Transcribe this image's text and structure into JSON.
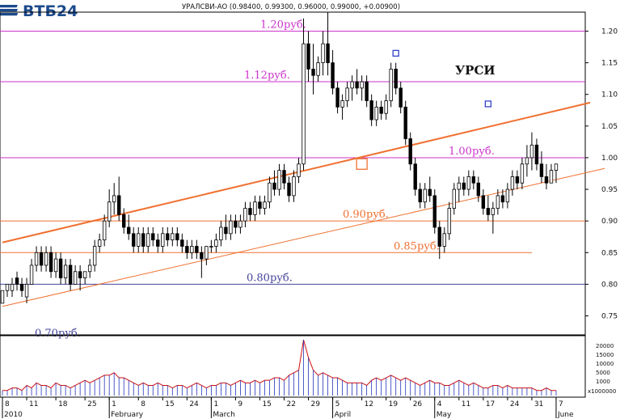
{
  "brand": {
    "name": "ВТБ24"
  },
  "header": {
    "quote": "УРАЛСВИ-АО (0.98400, 0.99300, 0.96000, 0.99000, +0.00900)"
  },
  "chart_data": {
    "type": "candlestick",
    "ticker_label": "УРСИ",
    "ylim": [
      0.72,
      1.23
    ],
    "y_ticks": [
      "1.20",
      "1.15",
      "1.10",
      "1.05",
      "1.00",
      "0.95",
      "0.90",
      "0.85",
      "0.80",
      "0.75"
    ],
    "x_day_labels": [
      "8",
      "11",
      "18",
      "25",
      "1",
      "8",
      "15",
      "24",
      "1",
      "9",
      "15",
      "22",
      "29",
      "5",
      "12",
      "19",
      "26",
      "4",
      "11",
      "17",
      "24",
      "31",
      "7"
    ],
    "x_month_labels": [
      "2010",
      "February",
      "March",
      "April",
      "May",
      "June"
    ],
    "levels": [
      {
        "value": 1.2,
        "label": "1.20руб.",
        "color": "#cc33cc"
      },
      {
        "value": 1.12,
        "label": "1.12руб.",
        "color": "#cc33cc"
      },
      {
        "value": 1.0,
        "label": "1.00руб.",
        "color": "#cc33cc"
      },
      {
        "value": 0.9,
        "label": "0.90руб.",
        "color": "#f07030"
      },
      {
        "value": 0.85,
        "label": "0.85руб.",
        "color": "#f07030"
      },
      {
        "value": 0.8,
        "label": "0.80руб.",
        "color": "#444499"
      },
      {
        "value": 0.7,
        "label": "0.70руб.",
        "color": "#444499"
      }
    ],
    "trendlines": [
      {
        "name": "upper",
        "start": {
          "day": 0,
          "value": 0.866
        },
        "end": {
          "day": 121,
          "value": 1.087
        }
      },
      {
        "name": "lower",
        "start": {
          "day": 0,
          "value": 0.765
        },
        "end": {
          "day": 124,
          "value": 0.983
        }
      }
    ],
    "markers": [
      {
        "day": 74,
        "value": 0.99,
        "color": "#f07030",
        "size": "large"
      },
      {
        "day": 81,
        "value": 1.165,
        "color": "#3344cc",
        "size": "small"
      },
      {
        "day": 100,
        "value": 1.085,
        "color": "#3344cc",
        "size": "small"
      },
      {
        "day": 130,
        "value": 1.013,
        "color": "#3344cc",
        "size": "small"
      }
    ],
    "candles": [
      {
        "day": 0,
        "o": 0.77,
        "h": 0.79,
        "l": 0.77,
        "c": 0.79
      },
      {
        "day": 1,
        "o": 0.79,
        "h": 0.8,
        "l": 0.78,
        "c": 0.8
      },
      {
        "day": 2,
        "o": 0.79,
        "h": 0.81,
        "l": 0.78,
        "c": 0.8
      },
      {
        "day": 3,
        "o": 0.81,
        "h": 0.82,
        "l": 0.79,
        "c": 0.8
      },
      {
        "day": 4,
        "o": 0.8,
        "h": 0.81,
        "l": 0.78,
        "c": 0.79
      },
      {
        "day": 5,
        "o": 0.78,
        "h": 0.81,
        "l": 0.77,
        "c": 0.8
      },
      {
        "day": 6,
        "o": 0.8,
        "h": 0.84,
        "l": 0.8,
        "c": 0.83
      },
      {
        "day": 7,
        "o": 0.83,
        "h": 0.86,
        "l": 0.82,
        "c": 0.85
      },
      {
        "day": 8,
        "o": 0.85,
        "h": 0.86,
        "l": 0.82,
        "c": 0.83
      },
      {
        "day": 9,
        "o": 0.83,
        "h": 0.86,
        "l": 0.82,
        "c": 0.85
      },
      {
        "day": 10,
        "o": 0.85,
        "h": 0.86,
        "l": 0.81,
        "c": 0.82
      },
      {
        "day": 11,
        "o": 0.82,
        "h": 0.85,
        "l": 0.81,
        "c": 0.84
      },
      {
        "day": 12,
        "o": 0.84,
        "h": 0.85,
        "l": 0.8,
        "c": 0.81
      },
      {
        "day": 13,
        "o": 0.81,
        "h": 0.84,
        "l": 0.8,
        "c": 0.83
      },
      {
        "day": 14,
        "o": 0.83,
        "h": 0.84,
        "l": 0.79,
        "c": 0.8
      },
      {
        "day": 15,
        "o": 0.8,
        "h": 0.83,
        "l": 0.8,
        "c": 0.82
      },
      {
        "day": 16,
        "o": 0.82,
        "h": 0.83,
        "l": 0.79,
        "c": 0.81
      },
      {
        "day": 17,
        "o": 0.81,
        "h": 0.82,
        "l": 0.8,
        "c": 0.82
      },
      {
        "day": 18,
        "o": 0.82,
        "h": 0.84,
        "l": 0.81,
        "c": 0.83
      },
      {
        "day": 19,
        "o": 0.83,
        "h": 0.87,
        "l": 0.82,
        "c": 0.86
      },
      {
        "day": 20,
        "o": 0.86,
        "h": 0.88,
        "l": 0.85,
        "c": 0.87
      },
      {
        "day": 21,
        "o": 0.87,
        "h": 0.91,
        "l": 0.86,
        "c": 0.9
      },
      {
        "day": 22,
        "o": 0.9,
        "h": 0.95,
        "l": 0.89,
        "c": 0.93
      },
      {
        "day": 23,
        "o": 0.93,
        "h": 0.96,
        "l": 0.91,
        "c": 0.94
      },
      {
        "day": 24,
        "o": 0.94,
        "h": 0.97,
        "l": 0.9,
        "c": 0.91
      },
      {
        "day": 25,
        "o": 0.91,
        "h": 0.92,
        "l": 0.88,
        "c": 0.89
      },
      {
        "day": 26,
        "o": 0.89,
        "h": 0.91,
        "l": 0.87,
        "c": 0.88
      },
      {
        "day": 27,
        "o": 0.88,
        "h": 0.89,
        "l": 0.85,
        "c": 0.86
      },
      {
        "day": 28,
        "o": 0.86,
        "h": 0.89,
        "l": 0.85,
        "c": 0.88
      },
      {
        "day": 29,
        "o": 0.88,
        "h": 0.89,
        "l": 0.85,
        "c": 0.86
      },
      {
        "day": 30,
        "o": 0.86,
        "h": 0.89,
        "l": 0.85,
        "c": 0.88
      },
      {
        "day": 31,
        "o": 0.88,
        "h": 0.89,
        "l": 0.86,
        "c": 0.87
      },
      {
        "day": 32,
        "o": 0.87,
        "h": 0.88,
        "l": 0.85,
        "c": 0.86
      },
      {
        "day": 33,
        "o": 0.86,
        "h": 0.89,
        "l": 0.85,
        "c": 0.88
      },
      {
        "day": 34,
        "o": 0.88,
        "h": 0.89,
        "l": 0.86,
        "c": 0.87
      },
      {
        "day": 35,
        "o": 0.87,
        "h": 0.89,
        "l": 0.86,
        "c": 0.88
      },
      {
        "day": 36,
        "o": 0.88,
        "h": 0.89,
        "l": 0.86,
        "c": 0.87
      },
      {
        "day": 37,
        "o": 0.87,
        "h": 0.88,
        "l": 0.85,
        "c": 0.86
      },
      {
        "day": 38,
        "o": 0.86,
        "h": 0.87,
        "l": 0.84,
        "c": 0.85
      },
      {
        "day": 39,
        "o": 0.85,
        "h": 0.87,
        "l": 0.84,
        "c": 0.86
      },
      {
        "day": 40,
        "o": 0.86,
        "h": 0.87,
        "l": 0.84,
        "c": 0.85
      },
      {
        "day": 41,
        "o": 0.85,
        "h": 0.86,
        "l": 0.81,
        "c": 0.84
      },
      {
        "day": 42,
        "o": 0.84,
        "h": 0.86,
        "l": 0.83,
        "c": 0.86
      },
      {
        "day": 43,
        "o": 0.86,
        "h": 0.87,
        "l": 0.85,
        "c": 0.86
      },
      {
        "day": 44,
        "o": 0.86,
        "h": 0.88,
        "l": 0.85,
        "c": 0.87
      },
      {
        "day": 45,
        "o": 0.87,
        "h": 0.9,
        "l": 0.86,
        "c": 0.89
      },
      {
        "day": 46,
        "o": 0.89,
        "h": 0.91,
        "l": 0.87,
        "c": 0.88
      },
      {
        "day": 47,
        "o": 0.88,
        "h": 0.91,
        "l": 0.87,
        "c": 0.9
      },
      {
        "day": 48,
        "o": 0.9,
        "h": 0.91,
        "l": 0.88,
        "c": 0.89
      },
      {
        "day": 49,
        "o": 0.89,
        "h": 0.91,
        "l": 0.88,
        "c": 0.9
      },
      {
        "day": 50,
        "o": 0.9,
        "h": 0.93,
        "l": 0.89,
        "c": 0.92
      },
      {
        "day": 51,
        "o": 0.92,
        "h": 0.93,
        "l": 0.9,
        "c": 0.91
      },
      {
        "day": 52,
        "o": 0.91,
        "h": 0.94,
        "l": 0.9,
        "c": 0.93
      },
      {
        "day": 53,
        "o": 0.93,
        "h": 0.94,
        "l": 0.91,
        "c": 0.92
      },
      {
        "day": 54,
        "o": 0.92,
        "h": 0.94,
        "l": 0.91,
        "c": 0.93
      },
      {
        "day": 55,
        "o": 0.93,
        "h": 0.97,
        "l": 0.92,
        "c": 0.96
      },
      {
        "day": 56,
        "o": 0.96,
        "h": 0.98,
        "l": 0.94,
        "c": 0.95
      },
      {
        "day": 57,
        "o": 0.95,
        "h": 0.99,
        "l": 0.94,
        "c": 0.98
      },
      {
        "day": 58,
        "o": 0.98,
        "h": 0.99,
        "l": 0.95,
        "c": 0.96
      },
      {
        "day": 59,
        "o": 0.96,
        "h": 0.97,
        "l": 0.93,
        "c": 0.94
      },
      {
        "day": 60,
        "o": 0.94,
        "h": 0.98,
        "l": 0.93,
        "c": 0.97
      },
      {
        "day": 61,
        "o": 0.97,
        "h": 1.0,
        "l": 0.96,
        "c": 0.99
      },
      {
        "day": 62,
        "o": 0.99,
        "h": 1.22,
        "l": 0.98,
        "c": 1.18
      },
      {
        "day": 63,
        "o": 1.18,
        "h": 1.2,
        "l": 1.12,
        "c": 1.14
      },
      {
        "day": 64,
        "o": 1.14,
        "h": 1.18,
        "l": 1.1,
        "c": 1.13
      },
      {
        "day": 65,
        "o": 1.13,
        "h": 1.16,
        "l": 1.12,
        "c": 1.15
      },
      {
        "day": 66,
        "o": 1.15,
        "h": 1.2,
        "l": 1.13,
        "c": 1.18
      },
      {
        "day": 67,
        "o": 1.18,
        "h": 1.23,
        "l": 1.13,
        "c": 1.15
      },
      {
        "day": 68,
        "o": 1.15,
        "h": 1.17,
        "l": 1.1,
        "c": 1.11
      },
      {
        "day": 69,
        "o": 1.11,
        "h": 1.12,
        "l": 1.07,
        "c": 1.08
      },
      {
        "day": 70,
        "o": 1.08,
        "h": 1.1,
        "l": 1.06,
        "c": 1.09
      },
      {
        "day": 71,
        "o": 1.09,
        "h": 1.12,
        "l": 1.08,
        "c": 1.11
      },
      {
        "day": 72,
        "o": 1.11,
        "h": 1.13,
        "l": 1.09,
        "c": 1.12
      },
      {
        "day": 73,
        "o": 1.12,
        "h": 1.14,
        "l": 1.1,
        "c": 1.11
      },
      {
        "day": 74,
        "o": 1.11,
        "h": 1.13,
        "l": 1.09,
        "c": 1.12
      },
      {
        "day": 75,
        "o": 1.12,
        "h": 1.13,
        "l": 1.08,
        "c": 1.09
      },
      {
        "day": 76,
        "o": 1.09,
        "h": 1.1,
        "l": 1.05,
        "c": 1.06
      },
      {
        "day": 77,
        "o": 1.06,
        "h": 1.09,
        "l": 1.05,
        "c": 1.08
      },
      {
        "day": 78,
        "o": 1.08,
        "h": 1.09,
        "l": 1.06,
        "c": 1.07
      },
      {
        "day": 79,
        "o": 1.07,
        "h": 1.1,
        "l": 1.06,
        "c": 1.09
      },
      {
        "day": 80,
        "o": 1.09,
        "h": 1.15,
        "l": 1.08,
        "c": 1.14
      },
      {
        "day": 81,
        "o": 1.14,
        "h": 1.15,
        "l": 1.1,
        "c": 1.11
      },
      {
        "day": 82,
        "o": 1.11,
        "h": 1.12,
        "l": 1.07,
        "c": 1.08
      },
      {
        "day": 83,
        "o": 1.08,
        "h": 1.09,
        "l": 1.02,
        "c": 1.03
      },
      {
        "day": 84,
        "o": 1.03,
        "h": 1.04,
        "l": 0.98,
        "c": 0.99
      },
      {
        "day": 85,
        "o": 0.99,
        "h": 1.0,
        "l": 0.94,
        "c": 0.95
      },
      {
        "day": 86,
        "o": 0.95,
        "h": 0.96,
        "l": 0.92,
        "c": 0.93
      },
      {
        "day": 87,
        "o": 0.93,
        "h": 0.96,
        "l": 0.92,
        "c": 0.95
      },
      {
        "day": 88,
        "o": 0.95,
        "h": 0.97,
        "l": 0.93,
        "c": 0.94
      },
      {
        "day": 89,
        "o": 0.94,
        "h": 0.95,
        "l": 0.88,
        "c": 0.89
      },
      {
        "day": 90,
        "o": 0.89,
        "h": 0.9,
        "l": 0.84,
        "c": 0.86
      },
      {
        "day": 91,
        "o": 0.86,
        "h": 0.89,
        "l": 0.85,
        "c": 0.88
      },
      {
        "day": 92,
        "o": 0.88,
        "h": 0.93,
        "l": 0.87,
        "c": 0.92
      },
      {
        "day": 93,
        "o": 0.92,
        "h": 0.96,
        "l": 0.91,
        "c": 0.95
      },
      {
        "day": 94,
        "o": 0.95,
        "h": 0.97,
        "l": 0.93,
        "c": 0.96
      },
      {
        "day": 95,
        "o": 0.96,
        "h": 0.97,
        "l": 0.94,
        "c": 0.95
      },
      {
        "day": 96,
        "o": 0.95,
        "h": 0.98,
        "l": 0.94,
        "c": 0.97
      },
      {
        "day": 97,
        "o": 0.97,
        "h": 0.98,
        "l": 0.95,
        "c": 0.96
      },
      {
        "day": 98,
        "o": 0.96,
        "h": 0.97,
        "l": 0.93,
        "c": 0.94
      },
      {
        "day": 99,
        "o": 0.94,
        "h": 0.95,
        "l": 0.91,
        "c": 0.92
      },
      {
        "day": 100,
        "o": 0.92,
        "h": 0.94,
        "l": 0.9,
        "c": 0.91
      },
      {
        "day": 101,
        "o": 0.91,
        "h": 0.93,
        "l": 0.88,
        "c": 0.92
      },
      {
        "day": 102,
        "o": 0.92,
        "h": 0.95,
        "l": 0.91,
        "c": 0.94
      },
      {
        "day": 103,
        "o": 0.94,
        "h": 0.95,
        "l": 0.92,
        "c": 0.93
      },
      {
        "day": 104,
        "o": 0.93,
        "h": 0.96,
        "l": 0.92,
        "c": 0.95
      },
      {
        "day": 105,
        "o": 0.95,
        "h": 0.98,
        "l": 0.94,
        "c": 0.97
      },
      {
        "day": 106,
        "o": 0.97,
        "h": 0.98,
        "l": 0.95,
        "c": 0.96
      },
      {
        "day": 107,
        "o": 0.96,
        "h": 1.0,
        "l": 0.95,
        "c": 0.99
      },
      {
        "day": 108,
        "o": 0.99,
        "h": 1.02,
        "l": 0.97,
        "c": 1.0
      },
      {
        "day": 109,
        "o": 1.0,
        "h": 1.04,
        "l": 0.98,
        "c": 1.02
      },
      {
        "day": 110,
        "o": 1.02,
        "h": 1.03,
        "l": 0.98,
        "c": 0.99
      },
      {
        "day": 111,
        "o": 0.99,
        "h": 1.01,
        "l": 0.96,
        "c": 0.97
      },
      {
        "day": 112,
        "o": 0.97,
        "h": 0.99,
        "l": 0.95,
        "c": 0.96
      },
      {
        "day": 113,
        "o": 0.96,
        "h": 0.99,
        "l": 0.96,
        "c": 0.98
      },
      {
        "day": 114,
        "o": 0.98,
        "h": 0.99,
        "l": 0.96,
        "c": 0.99
      }
    ],
    "volume_scale": [
      "20000",
      "15000",
      "10000",
      "5000",
      "1000",
      "x1000000"
    ],
    "volume": [
      2,
      2,
      3,
      3,
      2,
      4,
      3,
      5,
      4,
      4,
      3,
      5,
      4,
      4,
      3,
      4,
      5,
      6,
      5,
      6,
      7,
      8,
      8,
      9,
      7,
      7,
      6,
      5,
      4,
      5,
      4,
      4,
      5,
      4,
      4,
      3,
      4,
      4,
      3,
      4,
      5,
      4,
      3,
      4,
      4,
      5,
      5,
      4,
      5,
      6,
      5,
      5,
      6,
      5,
      6,
      6,
      7,
      7,
      6,
      8,
      9,
      10,
      22,
      15,
      10,
      8,
      9,
      8,
      7,
      7,
      6,
      5,
      5,
      5,
      5,
      4,
      6,
      7,
      6,
      7,
      8,
      7,
      6,
      7,
      6,
      5,
      4,
      5,
      6,
      5,
      5,
      4,
      4,
      5,
      6,
      5,
      4,
      5,
      4,
      3,
      3,
      4,
      4,
      3,
      4,
      3,
      3,
      3,
      3,
      3,
      2,
      2,
      3,
      2,
      2
    ]
  }
}
